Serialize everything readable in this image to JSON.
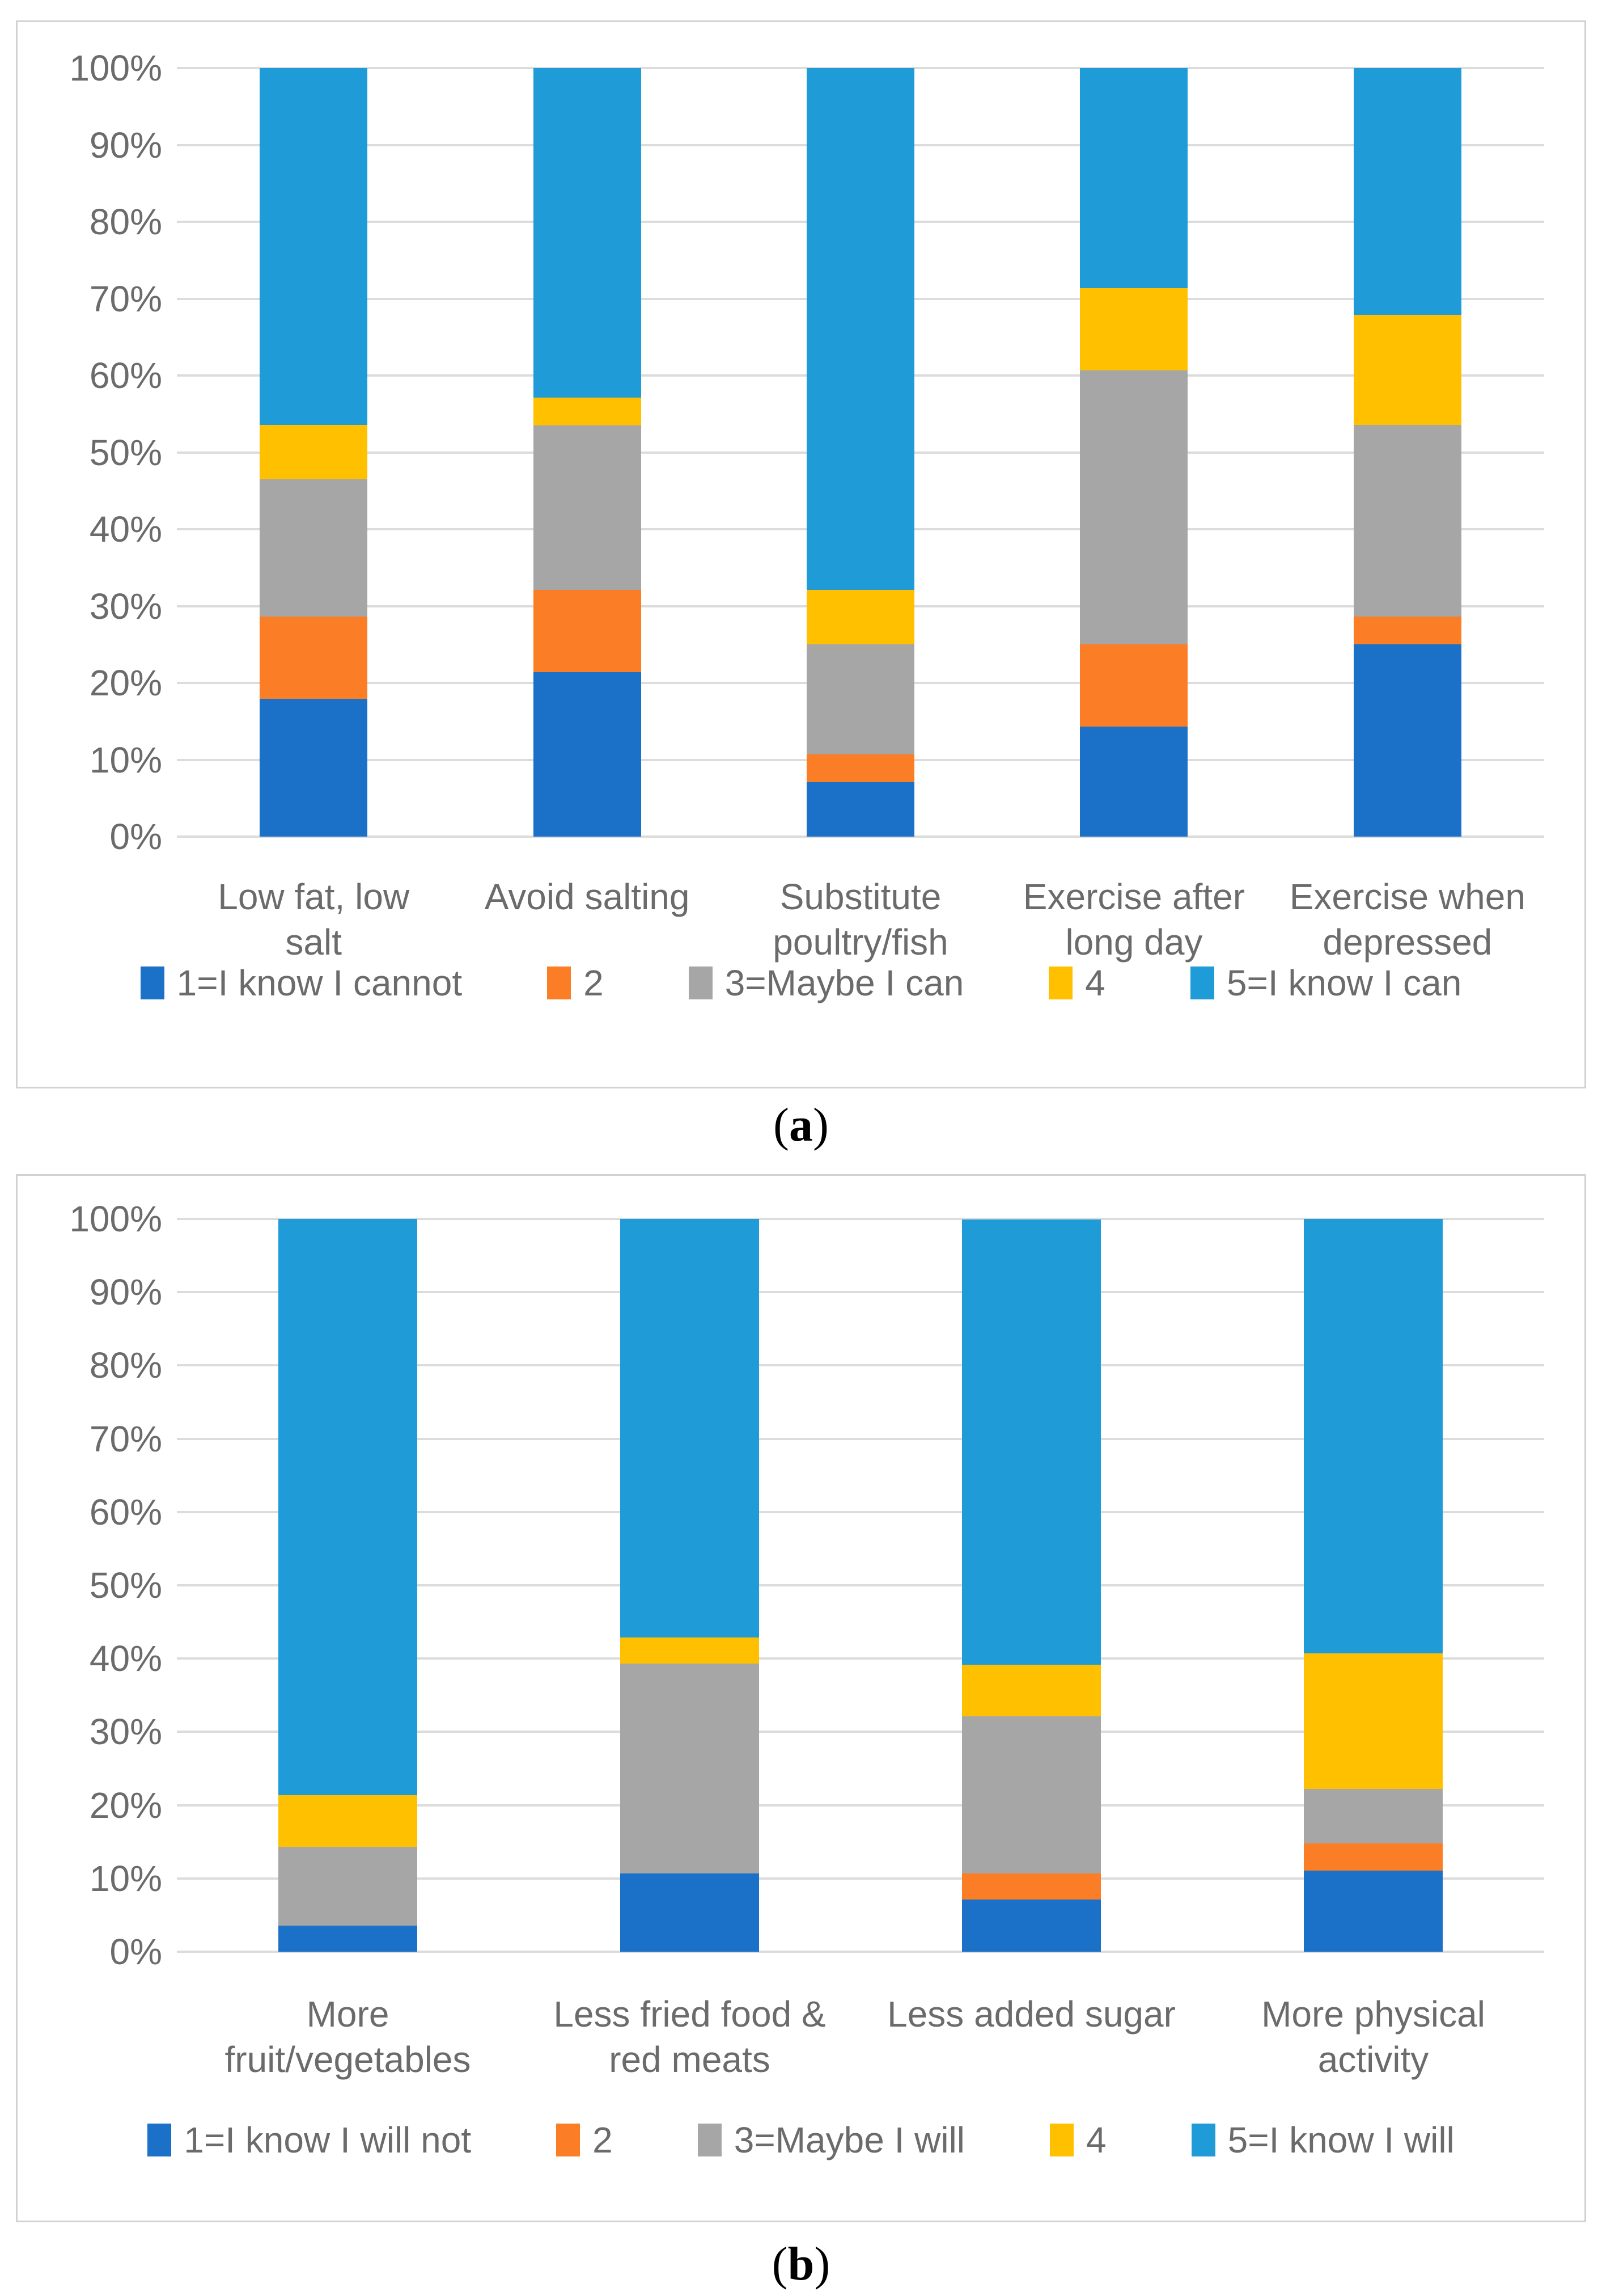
{
  "accent_colors": {
    "scale_1_blue": "#1B70C8",
    "scale_2_orange": "#FB7D26",
    "scale_3_gray": "#A6A6A6",
    "scale_4_yellow": "#FFC000",
    "scale_5_lightblue": "#1F9CD7",
    "gridline": "#DCDCDC",
    "axis_text": "#6B6B6B"
  },
  "chart_data": [
    {
      "id": "a",
      "type": "bar",
      "stacked": true,
      "units": "percent",
      "title": "",
      "xlabel": "",
      "ylabel": "",
      "ylim": [
        0,
        100
      ],
      "grid": true,
      "legend_position": "bottom",
      "y_ticks": [
        "0%",
        "10%",
        "20%",
        "30%",
        "40%",
        "50%",
        "60%",
        "70%",
        "80%",
        "90%",
        "100%"
      ],
      "categories": [
        "Low fat, low\nsalt",
        "Avoid salting",
        "Substitute\npoultry/fish",
        "Exercise after\nlong day",
        "Exercise when\ndepressed"
      ],
      "series": [
        {
          "name": "1=I know I cannot",
          "color": "#1B70C8",
          "values": [
            17.9,
            21.4,
            7.1,
            14.3,
            25.0
          ]
        },
        {
          "name": "2",
          "color": "#FB7D26",
          "values": [
            10.7,
            10.7,
            3.6,
            10.7,
            3.6
          ]
        },
        {
          "name": "3=Maybe I can",
          "color": "#A6A6A6",
          "values": [
            17.9,
            21.4,
            14.3,
            35.7,
            25.0
          ]
        },
        {
          "name": "4",
          "color": "#FFC000",
          "values": [
            7.1,
            3.6,
            7.1,
            10.7,
            14.3
          ]
        },
        {
          "name": "5=I know I can",
          "color": "#1F9CD7",
          "values": [
            46.4,
            42.9,
            67.9,
            28.6,
            32.1
          ]
        }
      ],
      "caption": {
        "open": "(",
        "letter": "a",
        "close": ")"
      }
    },
    {
      "id": "b",
      "type": "bar",
      "stacked": true,
      "units": "percent",
      "title": "",
      "xlabel": "",
      "ylabel": "",
      "ylim": [
        0,
        100
      ],
      "grid": true,
      "legend_position": "bottom",
      "y_ticks": [
        "0%",
        "10%",
        "20%",
        "30%",
        "40%",
        "50%",
        "60%",
        "70%",
        "80%",
        "90%",
        "100%"
      ],
      "categories": [
        "More\nfruit/vegetables",
        "Less fried food &\nred meats",
        "Less added sugar",
        "More physical\nactivity"
      ],
      "series": [
        {
          "name": "1=I know I will not",
          "color": "#1B70C8",
          "values": [
            3.6,
            10.7,
            7.1,
            11.1
          ]
        },
        {
          "name": "2",
          "color": "#FB7D26",
          "values": [
            0,
            0,
            3.6,
            3.7
          ]
        },
        {
          "name": "3=Maybe I will",
          "color": "#A6A6A6",
          "values": [
            10.7,
            28.6,
            21.4,
            7.4
          ]
        },
        {
          "name": "4",
          "color": "#FFC000",
          "values": [
            7.1,
            3.6,
            7.1,
            18.5
          ]
        },
        {
          "name": "5=I know I will",
          "color": "#1F9CD7",
          "values": [
            78.6,
            57.1,
            60.7,
            59.3
          ]
        }
      ],
      "caption": {
        "open": "(",
        "letter": "b",
        "close": ")"
      }
    }
  ]
}
